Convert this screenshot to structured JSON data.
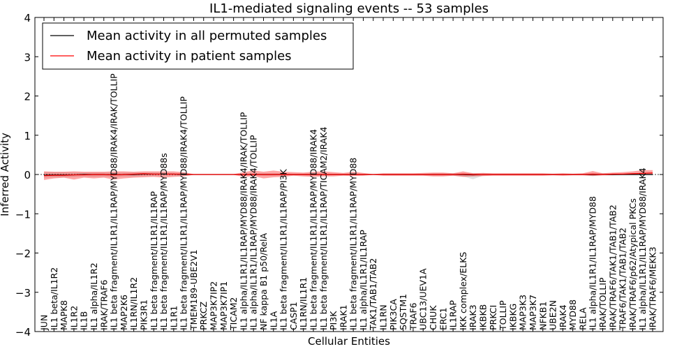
{
  "chart_data": {
    "type": "line",
    "title": "IL1-mediated signaling events -- 53 samples",
    "xlabel": "Cellular Entities",
    "ylabel": "Inferred Activity",
    "ylim": [
      -4,
      4
    ],
    "yticks": [
      -4,
      -3,
      -2,
      -1,
      0,
      1,
      2,
      3,
      4
    ],
    "grid": false,
    "legend_position": "top-left",
    "categories": [
      "JUN",
      "IL1 beta/IL1R2",
      "MAPK8",
      "IL1R2",
      "IL1B",
      "IL1 alpha/IL1R2",
      "IRAK/TRAF6",
      "IL1 beta fragment/IL1R1/IL1RAP/MYD88/IRAK4/IRAK/TOLLIP",
      "MAP2K6",
      "IL1RN/IL1R2",
      "PIK3R1",
      "IL1 beta fragment/IL1R1/IL1RAP",
      "IL1 beta fragment/IL1R1/IL1RAP/MYD88s",
      "IL1R1",
      "IL1 beta fragment/IL1R1/IL1RAP/MYD88/IRAK4/TOLLIP",
      "TMEM189-UBE2V1",
      "PRKCZ",
      "MAP3K7IP2",
      "MAP3K7IP1",
      "TICAM2",
      "IL1 alpha/IL1R1/IL1RAP/MYD88/IRAK4/IRAK/TOLLIP",
      "IL1 alpha/IL1R1/IL1RAP/MYD88/IRAK4/TOLLIP",
      "NF kappa B1 p50/RelA",
      "IL1A",
      "IL1 beta fragment/IL1R1/IL1RAP/PI3K",
      "CASP1",
      "IL1RN/IL1R1",
      "IL1 beta fragment/IL1R1/IL1RAP/MYD88/IRAK4",
      "IL1 beta fragment/IL1R1/IL1RAP/TICAM2/IRAK4",
      "PI3K",
      "IRAK1",
      "IL1 beta fragment/IL1R1/IL1RAP/MYD88",
      "IL1 alpha/IL1R1/IL1RAP",
      "TAK1/TAB1/TAB2",
      "IL1RN",
      "PIK3CA",
      "SQSTM1",
      "TRAF6",
      "UBC13/UEV1A",
      "CHUK",
      "ERC1",
      "IL1RAP",
      "IKK complex/ELKS",
      "IRAK3",
      "IKBKB",
      "PRKCI",
      "TOLLIP",
      "IKBKG",
      "MAP3K3",
      "MAP3K7",
      "NFKB1",
      "UBE2N",
      "IRAK4",
      "MYD88",
      "RELA",
      "IL1 alpha/IL1R1/IL1RAP/MYD88",
      "IRAK/TOLLIP",
      "IRAK/TRAF6/TAK1/TAB1/TAB2",
      "TRAF6/TAK1/TAB1/TAB2",
      "IRAK/TRAF6/p62/Atypical PKCs",
      "IL1 alpha/IL1R1/IL1RAP/MYD88/IRAK4",
      "IRAK/TRAF6/MEKK3"
    ],
    "series": [
      {
        "name": "Mean activity in all permuted samples",
        "color": "#000000",
        "values": [
          -0.02,
          -0.01,
          -0.01,
          -0.01,
          0.0,
          0.0,
          0.0,
          -0.01,
          0.0,
          0.0,
          0.01,
          0.01,
          0.01,
          0.01,
          0.0,
          0.0,
          0.0,
          0.0,
          0.0,
          0.0,
          0.0,
          0.0,
          0.0,
          0.0,
          0.0,
          0.0,
          0.0,
          0.0,
          0.0,
          0.0,
          0.0,
          0.0,
          0.0,
          0.0,
          0.0,
          0.0,
          0.0,
          0.0,
          0.0,
          0.0,
          0.0,
          0.0,
          0.0,
          -0.01,
          0.0,
          0.0,
          0.0,
          0.0,
          0.0,
          0.0,
          0.0,
          0.0,
          0.0,
          0.0,
          0.0,
          0.0,
          0.0,
          0.0,
          0.0,
          0.0,
          0.0,
          0.0
        ],
        "band_low": [
          -0.08,
          -0.07,
          -0.07,
          -0.06,
          -0.05,
          -0.06,
          -0.05,
          -0.06,
          -0.05,
          -0.05,
          -0.04,
          -0.04,
          -0.03,
          -0.03,
          -0.02,
          -0.01,
          -0.01,
          -0.01,
          -0.01,
          -0.01,
          -0.02,
          -0.02,
          -0.03,
          -0.03,
          -0.02,
          -0.02,
          -0.02,
          -0.03,
          -0.03,
          -0.02,
          -0.02,
          -0.02,
          -0.02,
          -0.01,
          -0.02,
          -0.02,
          -0.02,
          -0.02,
          -0.02,
          -0.03,
          -0.03,
          -0.03,
          -0.05,
          -0.12,
          -0.03,
          -0.02,
          -0.02,
          -0.02,
          -0.02,
          -0.02,
          -0.02,
          -0.02,
          -0.02,
          -0.02,
          -0.02,
          -0.03,
          -0.02,
          -0.02,
          -0.02,
          -0.02,
          -0.02,
          -0.02
        ],
        "band_high": [
          0.06,
          0.06,
          0.06,
          0.05,
          0.05,
          0.05,
          0.05,
          0.05,
          0.05,
          0.05,
          0.05,
          0.05,
          0.05,
          0.04,
          0.03,
          0.01,
          0.01,
          0.01,
          0.01,
          0.01,
          0.02,
          0.03,
          0.03,
          0.03,
          0.03,
          0.02,
          0.02,
          0.03,
          0.03,
          0.02,
          0.02,
          0.02,
          0.02,
          0.01,
          0.02,
          0.02,
          0.02,
          0.02,
          0.02,
          0.03,
          0.03,
          0.03,
          0.04,
          0.04,
          0.03,
          0.02,
          0.02,
          0.02,
          0.02,
          0.02,
          0.02,
          0.02,
          0.02,
          0.02,
          0.02,
          0.04,
          0.03,
          0.03,
          0.03,
          0.04,
          0.04,
          0.04
        ]
      },
      {
        "name": "Mean activity in patient samples",
        "color": "#ff0000",
        "values": [
          -0.03,
          -0.02,
          -0.02,
          -0.01,
          -0.01,
          0.0,
          0.0,
          -0.01,
          0.0,
          0.01,
          0.02,
          0.01,
          0.01,
          0.01,
          0.01,
          0.0,
          0.0,
          0.0,
          0.0,
          0.0,
          0.0,
          0.0,
          0.0,
          0.0,
          0.0,
          0.0,
          0.0,
          0.0,
          0.0,
          0.0,
          0.0,
          0.0,
          0.0,
          0.0,
          0.0,
          0.0,
          0.0,
          0.0,
          0.0,
          0.0,
          0.0,
          0.0,
          0.01,
          0.0,
          0.0,
          0.0,
          0.0,
          0.0,
          0.0,
          0.0,
          0.0,
          0.0,
          0.0,
          0.0,
          0.0,
          0.01,
          0.0,
          0.01,
          0.01,
          0.02,
          0.03,
          0.04
        ],
        "band_low": [
          -0.14,
          -0.1,
          -0.08,
          -0.13,
          -0.08,
          -0.1,
          -0.08,
          -0.13,
          -0.1,
          -0.08,
          -0.07,
          -0.06,
          -0.08,
          -0.06,
          -0.05,
          -0.01,
          -0.01,
          -0.01,
          -0.01,
          -0.01,
          -0.06,
          -0.04,
          -0.1,
          -0.07,
          -0.06,
          -0.03,
          -0.05,
          -0.06,
          -0.05,
          -0.05,
          -0.03,
          -0.04,
          -0.03,
          -0.01,
          -0.03,
          -0.03,
          -0.03,
          -0.03,
          -0.03,
          -0.05,
          -0.05,
          -0.03,
          -0.06,
          -0.05,
          -0.04,
          -0.03,
          -0.03,
          -0.03,
          -0.03,
          -0.03,
          -0.03,
          -0.02,
          -0.03,
          -0.02,
          -0.02,
          -0.04,
          -0.02,
          -0.02,
          -0.01,
          -0.01,
          0.0,
          0.0
        ],
        "band_high": [
          0.08,
          0.07,
          0.07,
          0.08,
          0.07,
          0.07,
          0.07,
          0.08,
          0.08,
          0.07,
          0.08,
          0.08,
          0.08,
          0.08,
          0.06,
          0.01,
          0.01,
          0.01,
          0.01,
          0.01,
          0.06,
          0.1,
          0.07,
          0.1,
          0.07,
          0.06,
          0.05,
          0.07,
          0.08,
          0.06,
          0.04,
          0.07,
          0.04,
          0.01,
          0.03,
          0.03,
          0.03,
          0.03,
          0.04,
          0.05,
          0.05,
          0.03,
          0.08,
          0.03,
          0.04,
          0.03,
          0.03,
          0.03,
          0.03,
          0.03,
          0.03,
          0.02,
          0.03,
          0.02,
          0.03,
          0.09,
          0.03,
          0.05,
          0.06,
          0.08,
          0.11,
          0.11
        ]
      }
    ],
    "band_colors": {
      "patient": "#ff0000",
      "permuted": "#c8c8c8"
    }
  }
}
